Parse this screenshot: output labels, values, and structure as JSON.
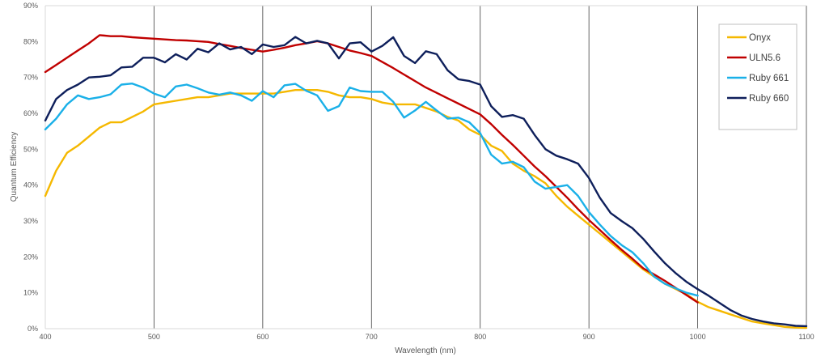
{
  "chart_data": {
    "type": "line",
    "title": "",
    "xlabel": "Wavelength (nm)",
    "ylabel": "Quantum Efficiency",
    "xlim": [
      400,
      1100
    ],
    "ylim": [
      0,
      90
    ],
    "x_ticks": [
      400,
      500,
      600,
      700,
      800,
      900,
      1000,
      1100
    ],
    "y_ticks": [
      "0%",
      "10%",
      "20%",
      "30%",
      "40%",
      "50%",
      "60%",
      "70%",
      "80%",
      "90%"
    ],
    "grid": "vertical",
    "legend_position": "top-right",
    "series": [
      {
        "name": "Onyx",
        "color": "#f5b800",
        "x": [
          400,
          410,
          420,
          430,
          440,
          450,
          460,
          470,
          480,
          490,
          500,
          510,
          520,
          530,
          540,
          550,
          560,
          570,
          580,
          590,
          600,
          610,
          620,
          630,
          640,
          650,
          660,
          670,
          680,
          690,
          700,
          710,
          720,
          730,
          740,
          750,
          760,
          770,
          780,
          790,
          800,
          810,
          820,
          830,
          840,
          850,
          860,
          870,
          880,
          890,
          900,
          910,
          920,
          930,
          940,
          950,
          960,
          970,
          980,
          990,
          1000,
          1010,
          1020,
          1030,
          1040,
          1050,
          1060,
          1070,
          1080,
          1090,
          1100
        ],
        "y": [
          37,
          44,
          49,
          51,
          53.5,
          56,
          57.5,
          57.5,
          59,
          60.5,
          62.5,
          63,
          63.5,
          64,
          64.5,
          64.5,
          65,
          65.5,
          65.5,
          65.5,
          65.5,
          65.5,
          66,
          66.5,
          66.5,
          66.5,
          66,
          65,
          64.5,
          64.5,
          64,
          63,
          62.5,
          62.5,
          62.5,
          61.5,
          60.5,
          59,
          58,
          55.5,
          54,
          51,
          49.5,
          46,
          44,
          42.5,
          40.5,
          37,
          34,
          31.5,
          29,
          26.5,
          24,
          21.5,
          19,
          16.5,
          14.5,
          12.5,
          11,
          9.5,
          7.5,
          6,
          5,
          4,
          3,
          2,
          1.5,
          1,
          0.5,
          0.3,
          0.2
        ]
      },
      {
        "name": "ULN5.6",
        "color": "#c00000",
        "x": [
          400,
          410,
          420,
          430,
          440,
          450,
          460,
          470,
          480,
          490,
          500,
          510,
          520,
          530,
          540,
          550,
          560,
          570,
          580,
          590,
          600,
          610,
          620,
          630,
          640,
          650,
          660,
          670,
          680,
          690,
          700,
          710,
          720,
          730,
          740,
          750,
          760,
          770,
          780,
          790,
          800,
          810,
          820,
          830,
          840,
          850,
          860,
          870,
          880,
          890,
          900,
          910,
          920,
          930,
          940,
          950,
          960,
          970,
          980,
          990,
          1000
        ],
        "y": [
          71.5,
          73.5,
          75.5,
          77.5,
          79.5,
          81.8,
          81.5,
          81.5,
          81.2,
          81,
          80.8,
          80.6,
          80.4,
          80.3,
          80.1,
          79.9,
          79.3,
          78.8,
          78.2,
          77.7,
          77.2,
          77.7,
          78.3,
          79,
          79.5,
          80.1,
          79.5,
          78.5,
          77.5,
          76.8,
          76,
          74.3,
          72.6,
          70.8,
          69,
          67.2,
          65.7,
          64.2,
          62.7,
          61.2,
          59.7,
          57,
          54,
          51.2,
          48.2,
          45.2,
          42.5,
          39.5,
          36.5,
          33.3,
          30.3,
          27.5,
          24.7,
          22,
          19.5,
          16.8,
          15.1,
          13.3,
          11.3,
          9.3,
          7.3
        ]
      },
      {
        "name": "Ruby 661",
        "color": "#1ab0e8",
        "x": [
          400,
          410,
          420,
          430,
          440,
          450,
          460,
          470,
          480,
          490,
          500,
          510,
          520,
          530,
          540,
          550,
          560,
          570,
          580,
          590,
          600,
          610,
          620,
          630,
          640,
          650,
          660,
          670,
          680,
          690,
          700,
          710,
          720,
          730,
          740,
          750,
          760,
          770,
          780,
          790,
          800,
          810,
          820,
          830,
          840,
          850,
          860,
          870,
          880,
          890,
          900,
          910,
          920,
          930,
          940,
          950,
          960,
          970,
          980,
          990,
          1000
        ],
        "y": [
          55.5,
          58.5,
          62.5,
          65,
          64,
          64.5,
          65.3,
          68,
          68.3,
          67.2,
          65.5,
          64.5,
          67.5,
          68,
          67,
          65.8,
          65.2,
          65.8,
          65,
          63.5,
          66.2,
          64.5,
          67.8,
          68.2,
          66.3,
          65,
          60.7,
          62,
          67.2,
          66.2,
          66,
          66,
          63.2,
          58.8,
          60.8,
          63.2,
          60.8,
          58.5,
          58.8,
          57.5,
          54.5,
          48.5,
          46,
          46.5,
          45,
          41,
          39,
          39.5,
          40,
          37,
          32.5,
          29,
          25.8,
          23.3,
          21.3,
          18.2,
          14.5,
          12.5,
          11.2,
          10,
          9.2
        ]
      },
      {
        "name": "Ruby 660",
        "color": "#0e1f5b",
        "x": [
          400,
          410,
          420,
          430,
          440,
          450,
          460,
          470,
          480,
          490,
          500,
          510,
          520,
          530,
          540,
          550,
          560,
          570,
          580,
          590,
          600,
          610,
          620,
          630,
          640,
          650,
          660,
          670,
          680,
          690,
          700,
          710,
          720,
          730,
          740,
          750,
          760,
          770,
          780,
          790,
          800,
          810,
          820,
          830,
          840,
          850,
          860,
          870,
          880,
          890,
          900,
          910,
          920,
          930,
          940,
          950,
          960,
          970,
          980,
          990,
          1000,
          1010,
          1020,
          1030,
          1040,
          1050,
          1060,
          1070,
          1080,
          1090,
          1100
        ],
        "y": [
          58,
          64,
          66.5,
          68,
          70,
          70.2,
          70.6,
          72.8,
          73,
          75.5,
          75.5,
          74.2,
          76.5,
          75,
          78,
          77,
          79.5,
          77.8,
          78.5,
          76.5,
          79.2,
          78.5,
          79,
          81.3,
          79.5,
          80.2,
          79.5,
          75.3,
          79.5,
          79.8,
          77.2,
          78.8,
          81.2,
          76,
          74,
          77.3,
          76.5,
          72,
          69.5,
          69,
          68,
          62,
          59,
          59.5,
          58.5,
          54,
          50,
          48.2,
          47.2,
          46,
          42,
          36.5,
          32.2,
          30,
          28,
          25,
          21.5,
          18.2,
          15.4,
          13,
          11,
          9.2,
          7.2,
          5.2,
          3.7,
          2.7,
          2,
          1.5,
          1.2,
          0.8,
          0.7
        ]
      }
    ]
  }
}
